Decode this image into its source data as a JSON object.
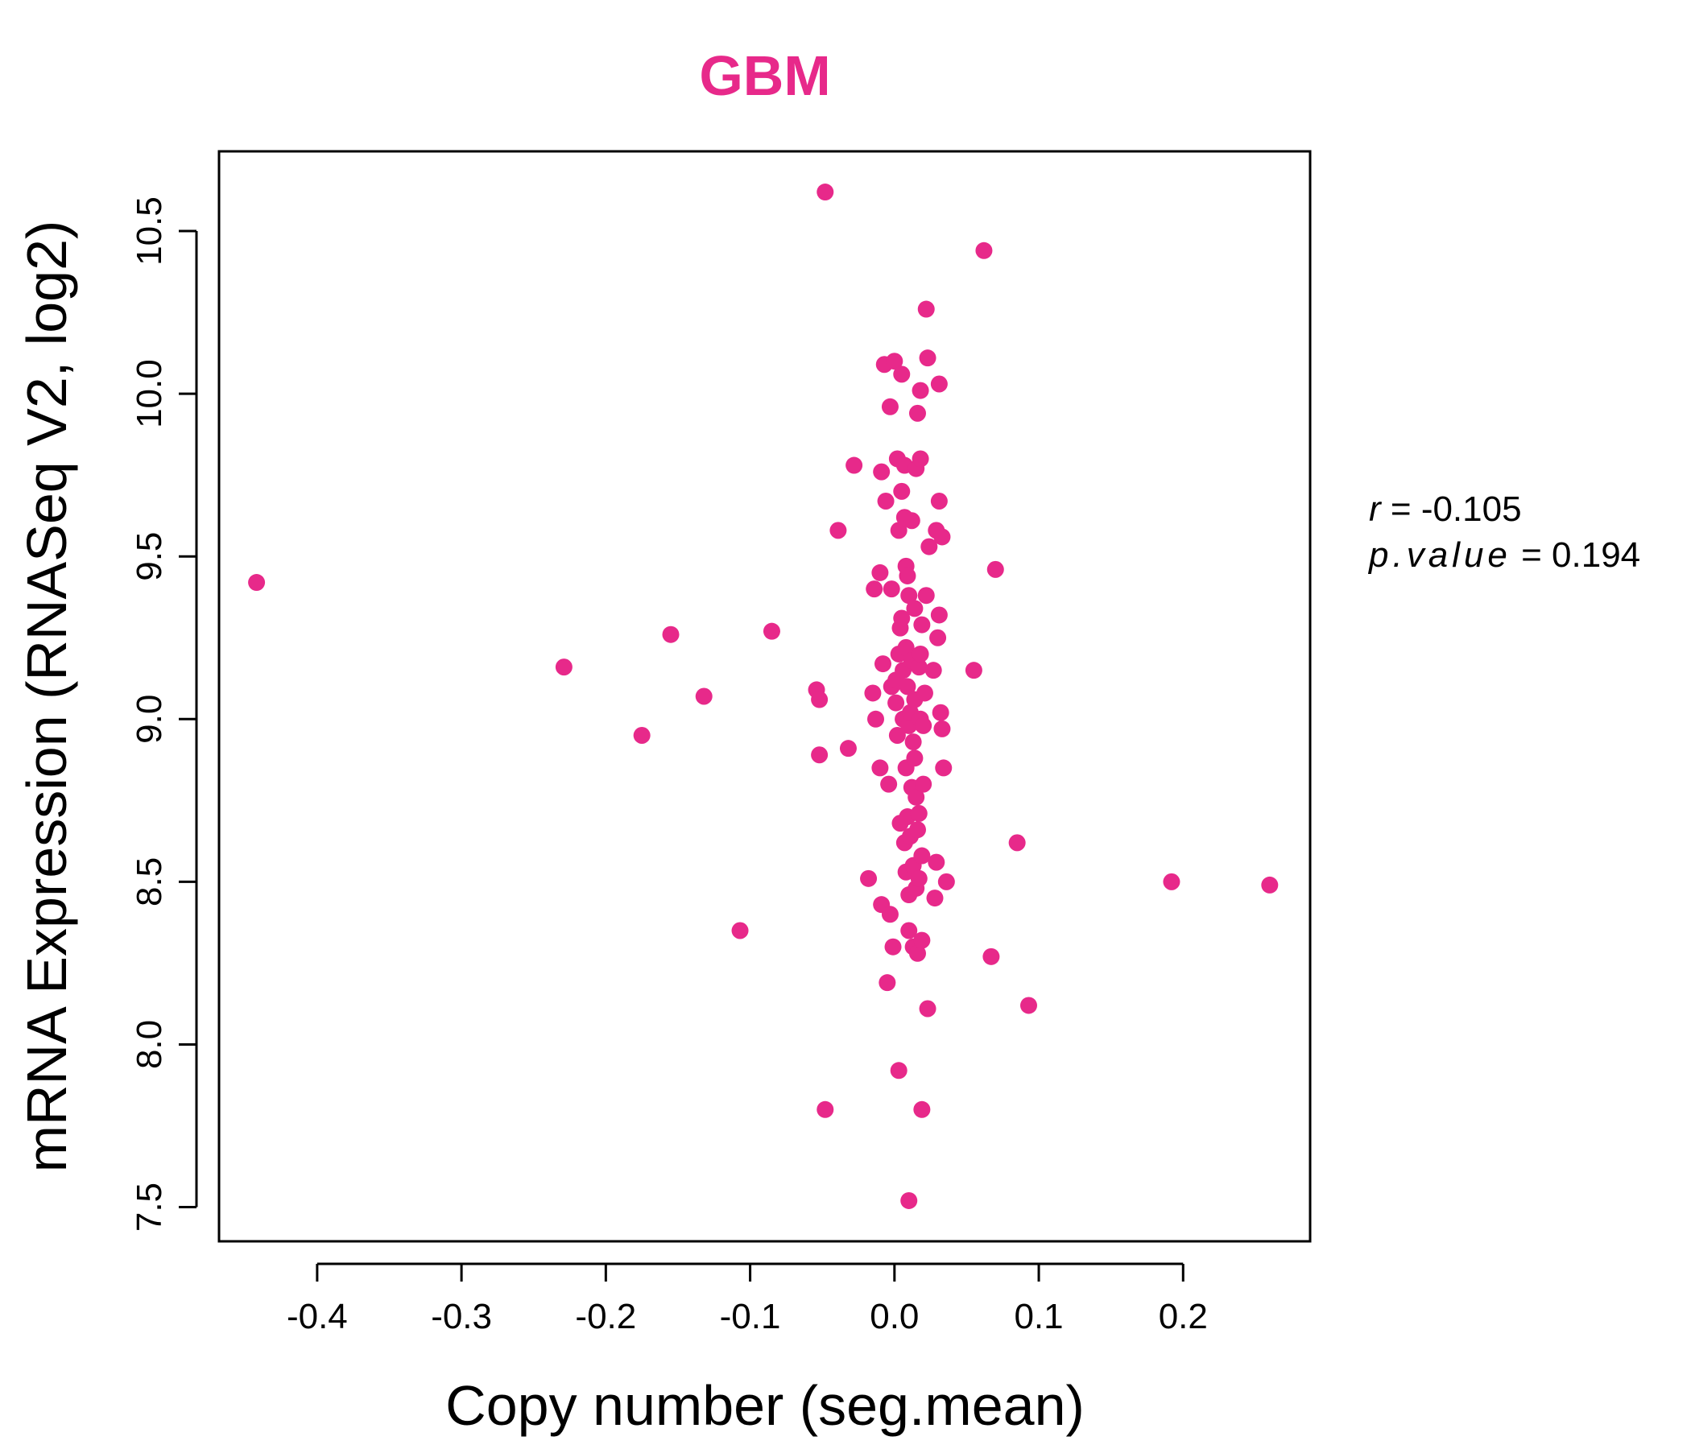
{
  "colors": {
    "accent": "#E7298A",
    "axis": "#000000",
    "background": "#FFFFFF"
  },
  "chart_data": {
    "type": "scatter",
    "title": "GBM",
    "xlabel": "Copy number (seg.mean)",
    "ylabel": "mRNA Expression (RNASeq V2, log2)",
    "xlim": [
      -0.468,
      0.288
    ],
    "ylim": [
      7.395,
      10.745
    ],
    "xticks": [
      -0.4,
      -0.3,
      -0.2,
      -0.1,
      0.0,
      0.1,
      0.2
    ],
    "xtick_labels": [
      "-0.4",
      "-0.3",
      "-0.2",
      "-0.1",
      "0.0",
      "0.1",
      "0.2"
    ],
    "yticks": [
      7.5,
      8.0,
      8.5,
      9.0,
      9.5,
      10.0,
      10.5
    ],
    "ytick_labels": [
      "7.5",
      "8.0",
      "8.5",
      "9.0",
      "9.5",
      "10.0",
      "10.5"
    ],
    "grid": false,
    "stats": {
      "r_label": "r",
      "r_value": "-0.105",
      "p_label": "p.value",
      "p_value": "0.194"
    },
    "points": [
      [
        -0.442,
        9.42
      ],
      [
        -0.229,
        9.16
      ],
      [
        -0.175,
        8.95
      ],
      [
        -0.155,
        9.26
      ],
      [
        -0.132,
        9.07
      ],
      [
        -0.107,
        8.35
      ],
      [
        -0.085,
        9.27
      ],
      [
        -0.054,
        9.09
      ],
      [
        -0.052,
        9.06
      ],
      [
        -0.052,
        8.89
      ],
      [
        -0.048,
        10.62
      ],
      [
        -0.048,
        7.8
      ],
      [
        -0.039,
        9.58
      ],
      [
        -0.032,
        8.91
      ],
      [
        -0.028,
        9.78
      ],
      [
        -0.018,
        8.51
      ],
      [
        -0.015,
        9.08
      ],
      [
        -0.014,
        9.4
      ],
      [
        -0.013,
        9.0
      ],
      [
        -0.01,
        9.45
      ],
      [
        -0.01,
        8.85
      ],
      [
        -0.009,
        9.76
      ],
      [
        -0.009,
        8.43
      ],
      [
        -0.008,
        9.17
      ],
      [
        -0.007,
        10.09
      ],
      [
        -0.006,
        9.67
      ],
      [
        -0.005,
        8.19
      ],
      [
        -0.004,
        8.8
      ],
      [
        -0.003,
        9.96
      ],
      [
        -0.003,
        8.4
      ],
      [
        -0.002,
        9.4
      ],
      [
        -0.002,
        9.1
      ],
      [
        -0.001,
        8.3
      ],
      [
        0.0,
        10.1
      ],
      [
        0.001,
        9.12
      ],
      [
        0.001,
        9.05
      ],
      [
        0.002,
        9.8
      ],
      [
        0.002,
        8.95
      ],
      [
        0.003,
        9.58
      ],
      [
        0.003,
        9.2
      ],
      [
        0.003,
        7.92
      ],
      [
        0.004,
        9.28
      ],
      [
        0.004,
        8.68
      ],
      [
        0.005,
        10.06
      ],
      [
        0.005,
        9.7
      ],
      [
        0.005,
        9.31
      ],
      [
        0.006,
        9.15
      ],
      [
        0.006,
        9.0
      ],
      [
        0.007,
        8.62
      ],
      [
        0.007,
        9.78
      ],
      [
        0.007,
        9.62
      ],
      [
        0.008,
        9.47
      ],
      [
        0.008,
        9.22
      ],
      [
        0.008,
        8.85
      ],
      [
        0.008,
        8.53
      ],
      [
        0.009,
        9.44
      ],
      [
        0.009,
        9.1
      ],
      [
        0.009,
        8.7
      ],
      [
        0.01,
        9.38
      ],
      [
        0.01,
        8.98
      ],
      [
        0.01,
        8.46
      ],
      [
        0.01,
        8.35
      ],
      [
        0.01,
        7.52
      ],
      [
        0.011,
        9.02
      ],
      [
        0.011,
        8.64
      ],
      [
        0.012,
        9.61
      ],
      [
        0.012,
        9.18
      ],
      [
        0.012,
        8.79
      ],
      [
        0.013,
        8.93
      ],
      [
        0.013,
        8.55
      ],
      [
        0.013,
        8.3
      ],
      [
        0.014,
        9.34
      ],
      [
        0.014,
        9.06
      ],
      [
        0.014,
        8.88
      ],
      [
        0.015,
        9.77
      ],
      [
        0.015,
        8.76
      ],
      [
        0.015,
        8.48
      ],
      [
        0.016,
        9.94
      ],
      [
        0.016,
        8.66
      ],
      [
        0.016,
        8.28
      ],
      [
        0.017,
        9.16
      ],
      [
        0.017,
        8.71
      ],
      [
        0.017,
        8.51
      ],
      [
        0.018,
        10.01
      ],
      [
        0.018,
        9.8
      ],
      [
        0.018,
        9.2
      ],
      [
        0.018,
        9.0
      ],
      [
        0.019,
        9.29
      ],
      [
        0.019,
        8.58
      ],
      [
        0.019,
        8.32
      ],
      [
        0.019,
        7.8
      ],
      [
        0.02,
        8.8
      ],
      [
        0.02,
        8.98
      ],
      [
        0.021,
        9.08
      ],
      [
        0.022,
        10.26
      ],
      [
        0.022,
        9.38
      ],
      [
        0.023,
        10.11
      ],
      [
        0.023,
        8.11
      ],
      [
        0.024,
        9.53
      ],
      [
        0.027,
        9.15
      ],
      [
        0.028,
        8.45
      ],
      [
        0.029,
        9.58
      ],
      [
        0.029,
        8.56
      ],
      [
        0.03,
        9.25
      ],
      [
        0.031,
        10.03
      ],
      [
        0.031,
        9.67
      ],
      [
        0.031,
        9.32
      ],
      [
        0.032,
        9.02
      ],
      [
        0.033,
        9.56
      ],
      [
        0.033,
        8.97
      ],
      [
        0.034,
        8.85
      ],
      [
        0.036,
        8.5
      ],
      [
        0.055,
        9.15
      ],
      [
        0.062,
        10.44
      ],
      [
        0.067,
        8.27
      ],
      [
        0.07,
        9.46
      ],
      [
        0.085,
        8.62
      ],
      [
        0.093,
        8.12
      ],
      [
        0.192,
        8.5
      ],
      [
        0.26,
        8.49
      ]
    ]
  }
}
